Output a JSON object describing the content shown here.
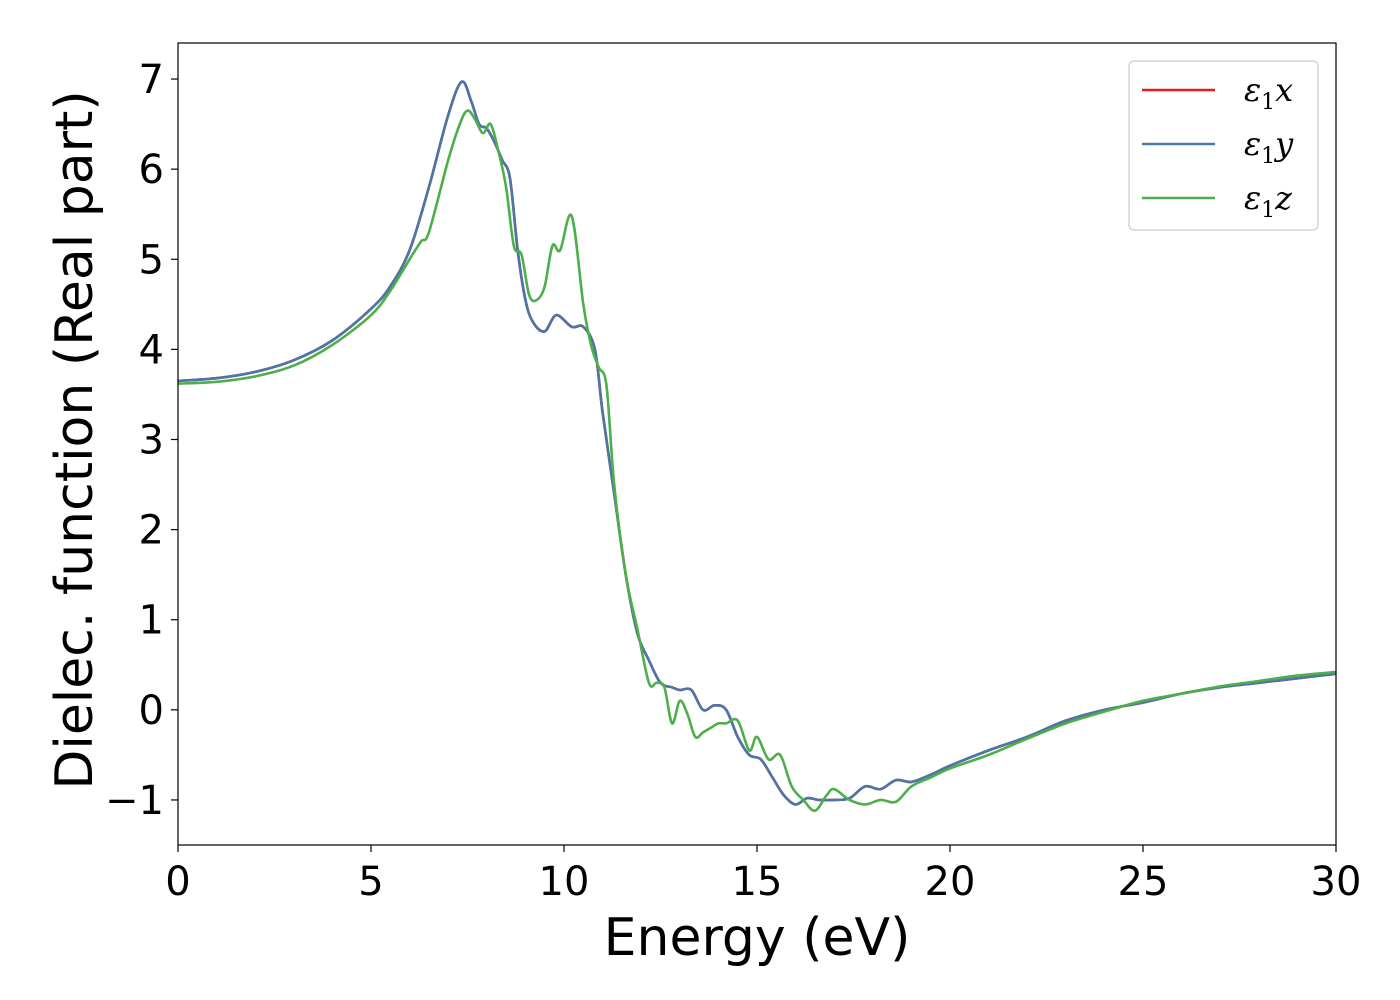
{
  "chart_data": {
    "type": "line",
    "title": "",
    "xlabel": "Energy (eV)",
    "ylabel": "Dielec. function (Real part)",
    "xlim": [
      0,
      30
    ],
    "ylim": [
      -1.5,
      7.4
    ],
    "xticks": [
      0,
      5,
      10,
      15,
      20,
      25,
      30
    ],
    "xtick_labels": [
      "0",
      "5",
      "10",
      "15",
      "20",
      "25",
      "30"
    ],
    "yticks": [
      -1,
      0,
      1,
      2,
      3,
      4,
      5,
      6,
      7
    ],
    "ytick_labels": [
      "−1",
      "0",
      "1",
      "2",
      "3",
      "4",
      "5",
      "6",
      "7"
    ],
    "grid": false,
    "legend_position": "top-right",
    "series": [
      {
        "name": "ε₁x",
        "name_base": "ε",
        "name_sub": "1",
        "name_suffix": "x",
        "color": "#e41a1c",
        "x": [
          0,
          1,
          2,
          3,
          4,
          5,
          5.5,
          6,
          6.5,
          7,
          7.35,
          7.6,
          7.8,
          8.0,
          8.2,
          8.4,
          8.6,
          8.8,
          9.0,
          9.2,
          9.5,
          9.8,
          10.2,
          10.5,
          10.8,
          11.0,
          11.3,
          11.6,
          11.9,
          12.2,
          12.5,
          12.8,
          13.0,
          13.3,
          13.6,
          13.9,
          14.2,
          14.5,
          14.8,
          15.1,
          15.4,
          15.7,
          16.0,
          16.3,
          16.6,
          17.0,
          17.4,
          17.8,
          18.2,
          18.6,
          19.0,
          19.5,
          20.0,
          21.0,
          22.0,
          23.0,
          24.0,
          25.0,
          26.0,
          27.0,
          28.0,
          29.0,
          30.0
        ],
        "y": [
          3.65,
          3.68,
          3.75,
          3.88,
          4.1,
          4.45,
          4.7,
          5.1,
          5.8,
          6.6,
          6.97,
          6.75,
          6.5,
          6.45,
          6.3,
          6.1,
          5.9,
          5.1,
          4.55,
          4.3,
          4.2,
          4.38,
          4.25,
          4.25,
          4.0,
          3.3,
          2.4,
          1.5,
          0.85,
          0.55,
          0.3,
          0.25,
          0.22,
          0.22,
          0.0,
          0.05,
          0.0,
          -0.3,
          -0.5,
          -0.55,
          -0.75,
          -0.95,
          -1.05,
          -0.98,
          -1.0,
          -1.0,
          -0.98,
          -0.85,
          -0.88,
          -0.78,
          -0.8,
          -0.72,
          -0.62,
          -0.45,
          -0.3,
          -0.12,
          0.0,
          0.08,
          0.18,
          0.25,
          0.3,
          0.35,
          0.4
        ]
      },
      {
        "name": "ε₁y",
        "name_base": "ε",
        "name_sub": "1",
        "name_suffix": "y",
        "color": "#4a76a8",
        "x": [
          0,
          1,
          2,
          3,
          4,
          5,
          5.5,
          6,
          6.5,
          7,
          7.35,
          7.6,
          7.8,
          8.0,
          8.2,
          8.4,
          8.6,
          8.8,
          9.0,
          9.2,
          9.5,
          9.8,
          10.2,
          10.5,
          10.8,
          11.0,
          11.3,
          11.6,
          11.9,
          12.2,
          12.5,
          12.8,
          13.0,
          13.3,
          13.6,
          13.9,
          14.2,
          14.5,
          14.8,
          15.1,
          15.4,
          15.7,
          16.0,
          16.3,
          16.6,
          17.0,
          17.4,
          17.8,
          18.2,
          18.6,
          19.0,
          19.5,
          20.0,
          21.0,
          22.0,
          23.0,
          24.0,
          25.0,
          26.0,
          27.0,
          28.0,
          29.0,
          30.0
        ],
        "y": [
          3.65,
          3.68,
          3.75,
          3.88,
          4.1,
          4.45,
          4.7,
          5.1,
          5.8,
          6.6,
          6.97,
          6.75,
          6.5,
          6.45,
          6.3,
          6.1,
          5.9,
          5.1,
          4.55,
          4.3,
          4.2,
          4.38,
          4.25,
          4.25,
          4.0,
          3.3,
          2.4,
          1.5,
          0.85,
          0.55,
          0.3,
          0.25,
          0.22,
          0.22,
          0.0,
          0.05,
          0.0,
          -0.3,
          -0.5,
          -0.55,
          -0.75,
          -0.95,
          -1.05,
          -0.98,
          -1.0,
          -1.0,
          -0.98,
          -0.85,
          -0.88,
          -0.78,
          -0.8,
          -0.72,
          -0.62,
          -0.45,
          -0.3,
          -0.12,
          0.0,
          0.08,
          0.18,
          0.25,
          0.3,
          0.35,
          0.4
        ]
      },
      {
        "name": "ε₁z",
        "name_base": "ε",
        "name_sub": "1",
        "name_suffix": "z",
        "color": "#4daf4a",
        "x": [
          0,
          1,
          2,
          3,
          4,
          5,
          5.5,
          6,
          6.3,
          6.5,
          7,
          7.3,
          7.5,
          7.7,
          7.9,
          8.1,
          8.3,
          8.5,
          8.7,
          8.9,
          9.1,
          9.3,
          9.5,
          9.7,
          9.9,
          10.2,
          10.5,
          10.7,
          10.9,
          11.1,
          11.3,
          11.6,
          11.9,
          12.2,
          12.4,
          12.6,
          12.8,
          13.0,
          13.2,
          13.4,
          13.6,
          13.8,
          14.0,
          14.2,
          14.5,
          14.8,
          15.0,
          15.3,
          15.6,
          15.9,
          16.2,
          16.5,
          16.8,
          17.0,
          17.4,
          17.8,
          18.2,
          18.6,
          19.0,
          19.5,
          20.0,
          21.0,
          22.0,
          23.0,
          24.0,
          25.0,
          26.0,
          27.0,
          28.0,
          29.0,
          30.0
        ],
        "y": [
          3.62,
          3.64,
          3.7,
          3.82,
          4.05,
          4.38,
          4.65,
          5.0,
          5.2,
          5.3,
          6.1,
          6.5,
          6.65,
          6.55,
          6.4,
          6.5,
          6.2,
          5.8,
          5.15,
          5.05,
          4.6,
          4.55,
          4.7,
          5.15,
          5.1,
          5.48,
          4.5,
          4.05,
          3.8,
          3.6,
          2.5,
          1.5,
          0.9,
          0.3,
          0.3,
          0.25,
          -0.15,
          0.1,
          -0.05,
          -0.3,
          -0.25,
          -0.2,
          -0.15,
          -0.15,
          -0.12,
          -0.45,
          -0.3,
          -0.55,
          -0.5,
          -0.85,
          -1.0,
          -1.12,
          -0.95,
          -0.88,
          -1.0,
          -1.05,
          -1.0,
          -1.02,
          -0.85,
          -0.75,
          -0.65,
          -0.5,
          -0.32,
          -0.15,
          -0.02,
          0.1,
          0.18,
          0.26,
          0.32,
          0.38,
          0.42
        ]
      }
    ]
  }
}
